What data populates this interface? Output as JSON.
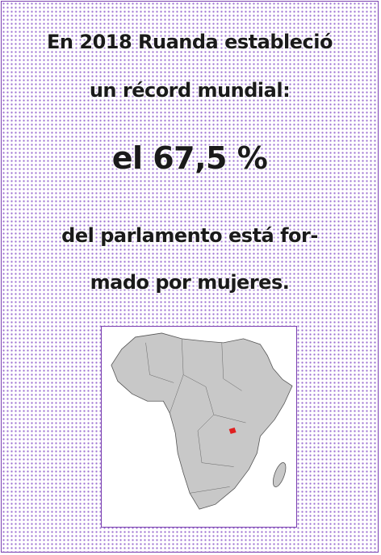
{
  "heading": [
    "En 2018 Ruanda estableció",
    "un récord mundial:"
  ],
  "highlight": "el 67,5 %",
  "body": [
    "del parlamento está for-",
    "mado por mujeres."
  ]
}
